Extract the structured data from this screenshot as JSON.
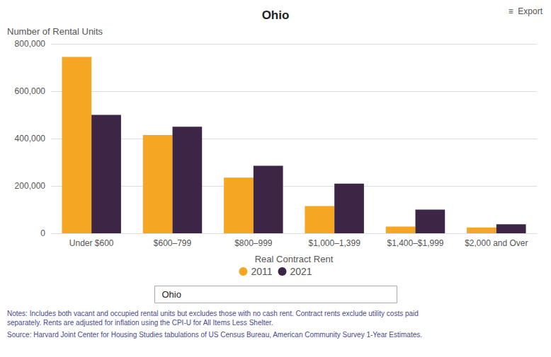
{
  "chart_data": {
    "type": "bar",
    "title": "Ohio",
    "ylabel": "Number of Rental Units",
    "xlabel": "Real Contract Rent",
    "categories": [
      "Under $600",
      "$600–799",
      "$800–999",
      "$1,000–1,399",
      "$1,400–$1,999",
      "$2,000 and Over"
    ],
    "series": [
      {
        "name": "2011",
        "color": "#f5a623",
        "values": [
          745000,
          415000,
          235000,
          115000,
          28000,
          25000
        ]
      },
      {
        "name": "2021",
        "color": "#3d2645",
        "values": [
          500000,
          450000,
          285000,
          210000,
          100000,
          38000
        ]
      }
    ],
    "ylim": [
      0,
      800000
    ],
    "yticks": [
      0,
      {
        "value": 200000,
        "label": "200,000"
      },
      {
        "value": 400000,
        "label": "400,000"
      },
      {
        "value": 600000,
        "label": "600,000"
      },
      {
        "value": 800000,
        "label": "800,000"
      }
    ],
    "grid": true,
    "legend": "bottom",
    "annotations": [
      "≡  Export",
      "Ohio",
      "Notes: Includes both vacant and occupied rental units but excludes those with no cash rent. Contract rents exclude utility costs paid\nseparately. Rents are adjusted for inflation using the CPI-U for All Items Less Shelter.",
      "Source: Harvard Joint Center for Housing Studies tabulations of US Census Bureau, American Community Survey 1-Year Estimates."
    ]
  }
}
